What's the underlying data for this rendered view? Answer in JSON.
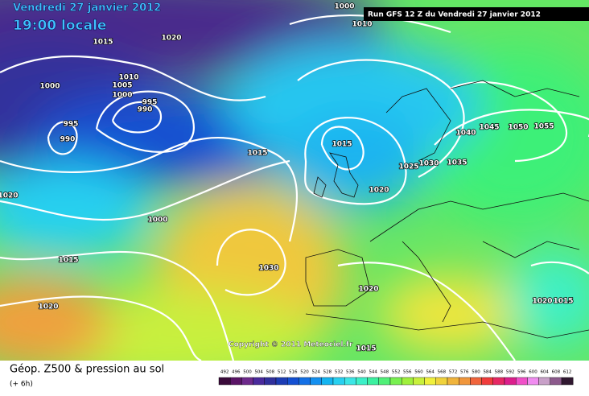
{
  "header": {
    "date": "Vendredi 27 janvier 2012",
    "time": "19:00 locale",
    "run": "Run GFS 12 Z du Vendredi 27 janvier 2012"
  },
  "isobar_labels": [
    1000,
    1010,
    1015,
    1020,
    1000,
    1010,
    1005,
    1000,
    995,
    990,
    995,
    990,
    1015,
    1015,
    1025,
    1030,
    1035,
    1040,
    1045,
    1050,
    1055,
    1020,
    1020,
    1000,
    1015,
    1030,
    1020,
    1020,
    1015,
    1020,
    1015
  ],
  "copyright": "Copyright © 2011 Meteociel.fr",
  "legend": {
    "title": "Géop. Z500 & pression au sol",
    "step": "(+ 6h)",
    "labels": [
      492,
      496,
      500,
      504,
      508,
      512,
      516,
      520,
      524,
      528,
      532,
      536,
      540,
      544,
      548,
      552,
      556,
      560,
      564,
      568,
      572,
      576,
      580,
      584,
      588,
      592,
      596,
      600,
      604,
      608,
      612
    ],
    "colors": [
      "#3a0a3a",
      "#5a1466",
      "#6e2a8c",
      "#4a2a9c",
      "#30309c",
      "#1c3cb4",
      "#1450d2",
      "#1470e6",
      "#1490f0",
      "#14b4f0",
      "#28d0f0",
      "#3ce6e6",
      "#3cf0c8",
      "#3cf0a0",
      "#50f078",
      "#78f050",
      "#a0f03c",
      "#c8f03c",
      "#f0f03c",
      "#f0d23c",
      "#f0b43c",
      "#f0963c",
      "#f0643c",
      "#f03c3c",
      "#e62864",
      "#dc1e8c",
      "#f050c8",
      "#f08cf0",
      "#c8a0c8",
      "#8c5a8c",
      "#301830"
    ]
  }
}
